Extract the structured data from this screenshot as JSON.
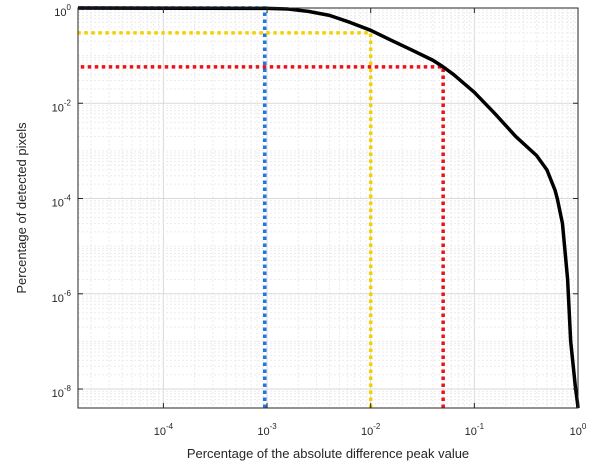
{
  "chart_data": {
    "type": "line",
    "title": "",
    "xlabel": "Percentage of the absolute difference peak value",
    "ylabel": "Percentage of detected pixels",
    "xscale": "log",
    "yscale": "log",
    "xlim": [
      1.5e-05,
      1
    ],
    "ylim": [
      4e-09,
      1
    ],
    "grid": true,
    "minor_grid": true,
    "x_ticks": [
      {
        "value": 0.0001,
        "base": "10",
        "exp": "-4"
      },
      {
        "value": 0.001,
        "base": "10",
        "exp": "-3"
      },
      {
        "value": 0.01,
        "base": "10",
        "exp": "-2"
      },
      {
        "value": 0.1,
        "base": "10",
        "exp": "-1"
      },
      {
        "value": 1,
        "base": "10",
        "exp": "0"
      }
    ],
    "y_ticks": [
      {
        "value": 1e-08,
        "base": "10",
        "exp": "-8"
      },
      {
        "value": 1e-06,
        "base": "10",
        "exp": "-6"
      },
      {
        "value": 0.0001,
        "base": "10",
        "exp": "-4"
      },
      {
        "value": 0.01,
        "base": "10",
        "exp": "-2"
      },
      {
        "value": 1,
        "base": "10",
        "exp": "0"
      }
    ],
    "series": [
      {
        "color": "#000000",
        "style": "solid",
        "x": [
          1.5e-05,
          0.001,
          0.0016,
          0.0025,
          0.004,
          0.0063,
          0.01,
          0.0158,
          0.0251,
          0.0398,
          0.05,
          0.0631,
          0.1,
          0.1585,
          0.2512,
          0.3981,
          0.5012,
          0.6,
          0.631,
          0.708,
          0.794,
          0.85,
          0.9,
          0.94,
          0.97,
          0.99,
          1.0
        ],
        "y": [
          1.0,
          0.98,
          0.95,
          0.85,
          0.7,
          0.5,
          0.34,
          0.21,
          0.13,
          0.08,
          0.058,
          0.04,
          0.017,
          0.006,
          0.002,
          0.0008,
          0.0004,
          0.00015,
          0.0001,
          3e-05,
          2e-06,
          1e-07,
          3e-08,
          1.2e-08,
          7e-09,
          5e-09,
          4e-09
        ]
      }
    ],
    "reference_lines": [
      {
        "color": "#1f77e4",
        "style": "dotted",
        "x": 0.00095,
        "y": 1.0
      },
      {
        "color": "#f5d000",
        "style": "dotted",
        "x": 0.01,
        "y": 0.3
      },
      {
        "color": "#e8141a",
        "style": "dotted",
        "x": 0.05,
        "y": 0.058
      }
    ]
  }
}
